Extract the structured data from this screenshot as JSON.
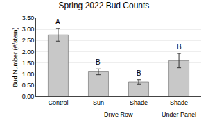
{
  "chart_data": {
    "type": "bar",
    "title": "Spring 2022 Bud Counts",
    "ylabel": "Bud Number (#/stem)",
    "categories": [
      "Control",
      "Sun",
      "Shade",
      "Shade"
    ],
    "values": [
      2.75,
      1.1,
      0.65,
      1.6
    ],
    "errors": [
      0.28,
      0.13,
      0.1,
      0.32
    ],
    "letters": [
      "A",
      "B",
      "B",
      "B"
    ],
    "groups": [
      {
        "label": "Drive Row",
        "span": [
          1,
          2
        ]
      },
      {
        "label": "Under Panel",
        "span": [
          3,
          3
        ]
      }
    ],
    "color": "#c8c8c8",
    "ylim": [
      0,
      3.5
    ],
    "yticks": [
      {
        "value": 0.0,
        "label": "0.00"
      },
      {
        "value": 0.5,
        "label": "0.50"
      },
      {
        "value": 1.0,
        "label": "1.00"
      },
      {
        "value": 1.5,
        "label": "1.50"
      },
      {
        "value": 2.0,
        "label": "2.00"
      },
      {
        "value": 2.5,
        "label": "2.50"
      },
      {
        "value": 3.0,
        "label": "3.00"
      },
      {
        "value": 3.5,
        "label": "3.50"
      }
    ],
    "grid": true
  }
}
